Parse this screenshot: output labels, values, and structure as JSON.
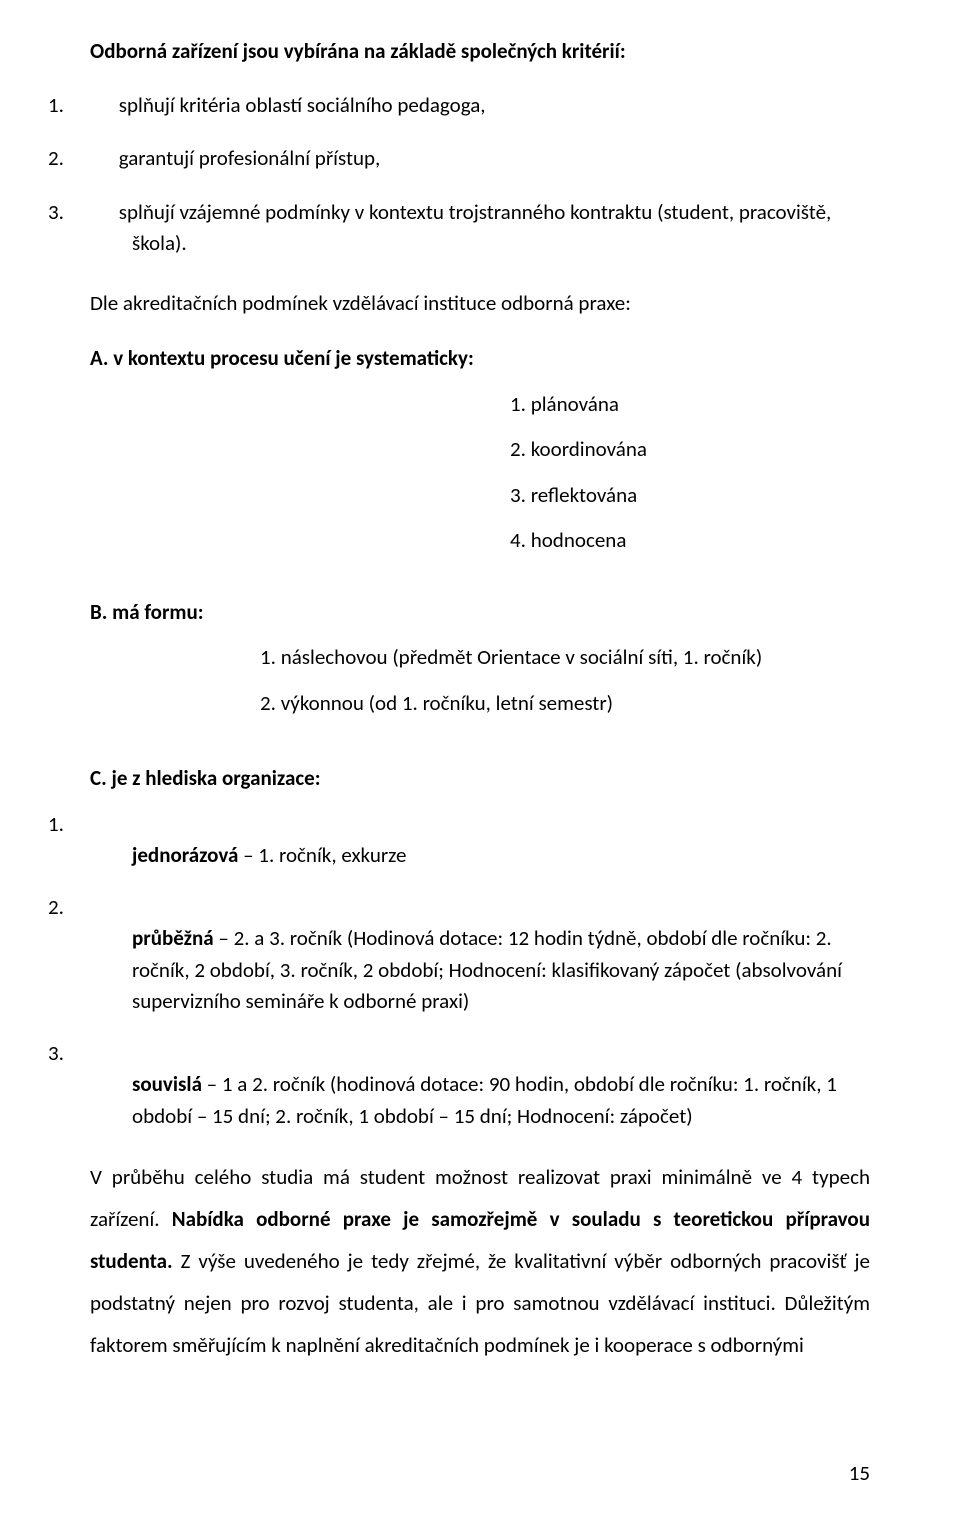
{
  "heading": "Odborná zařízení jsou vybírána na základě společných kritérií:",
  "criteria": [
    "splňují kritéria oblastí sociálního pedagoga,",
    "garantují profesionální přístup,",
    "splňují vzájemné podmínky v kontextu trojstranného kontraktu (student, pracoviště, škola)."
  ],
  "intro_para": "Dle akreditačních podmínek vzdělávací instituce odborná praxe:",
  "section_a_label": "A.   v kontextu procesu učení je systematicky:",
  "section_a_items": [
    "plánována",
    "koordinována",
    "reflektována",
    "hodnocena"
  ],
  "section_b_label": "B.   má formu:",
  "section_b_items": [
    "náslechovou (předmět Orientace v sociální síti, 1. ročník)",
    "výkonnou (od 1. ročníku, letní semestr)"
  ],
  "section_c_label": "C.   je z hlediska organizace:",
  "section_c_items": [
    {
      "num": "1.",
      "lead_bold": "jednorázová",
      "tail": " – 1. ročník, exkurze"
    },
    {
      "num": "2.",
      "lead_bold": "průběžná",
      "tail": " – 2. a 3. ročník (Hodinová dotace: 12 hodin týdně, období dle ročníku: 2. ročník, 2 období, 3. ročník, 2 období; Hodnocení: klasifikovaný zápočet (absolvování supervizního semináře k odborné praxi)"
    },
    {
      "num": "3.",
      "lead_bold": "souvislá",
      "tail": " – 1 a 2. ročník (hodinová dotace: 90 hodin, období dle ročníku: 1. ročník, 1 období – 15 dní; 2. ročník, 1 období – 15 dní; Hodnocení: zápočet)"
    }
  ],
  "body_runs": [
    {
      "text": "V průběhu celého studia má student možnost realizovat praxi minimálně ve 4 typech zařízení. ",
      "bold": false
    },
    {
      "text": "Nabídka odborné praxe je samozřejmě v souladu s teoretickou přípravou studenta.",
      "bold": true
    },
    {
      "text": " Z výše uvedeného je tedy zřejmé, že kvalitativní výběr odborných pracovišť je podstatný nejen pro rozvoj studenta, ale i pro samotnou vzdělávací instituci. Důležitým faktorem směřujícím k naplnění akreditačních podmínek je i kooperace s odbornými",
      "bold": false
    }
  ],
  "page_number": "15"
}
